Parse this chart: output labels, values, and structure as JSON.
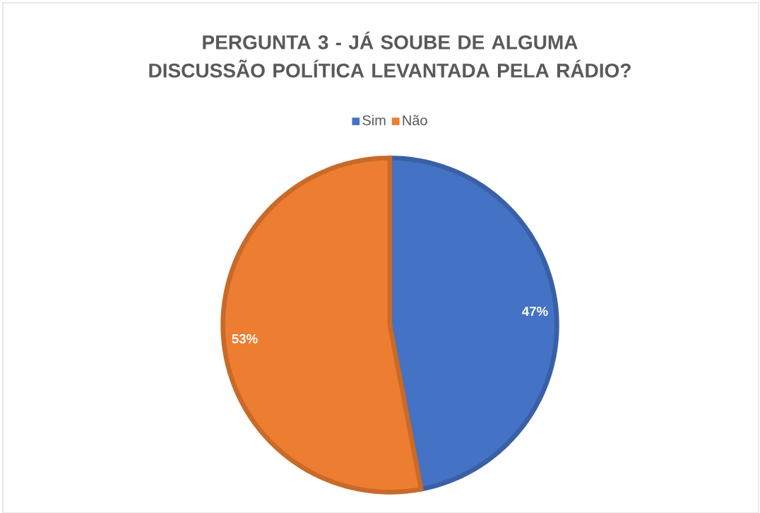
{
  "chart_data": {
    "type": "pie",
    "title": "PERGUNTA 3 - JÁ SOUBE DE ALGUMA DISCUSSÃO POLÍTICA LEVANTADA PELA RÁDIO?",
    "categories": [
      "Sim",
      "Não"
    ],
    "values": [
      47,
      53
    ],
    "colors": [
      "#4472c4",
      "#ed7d31"
    ],
    "value_labels": [
      "47%",
      "53%"
    ],
    "legend": "top"
  }
}
